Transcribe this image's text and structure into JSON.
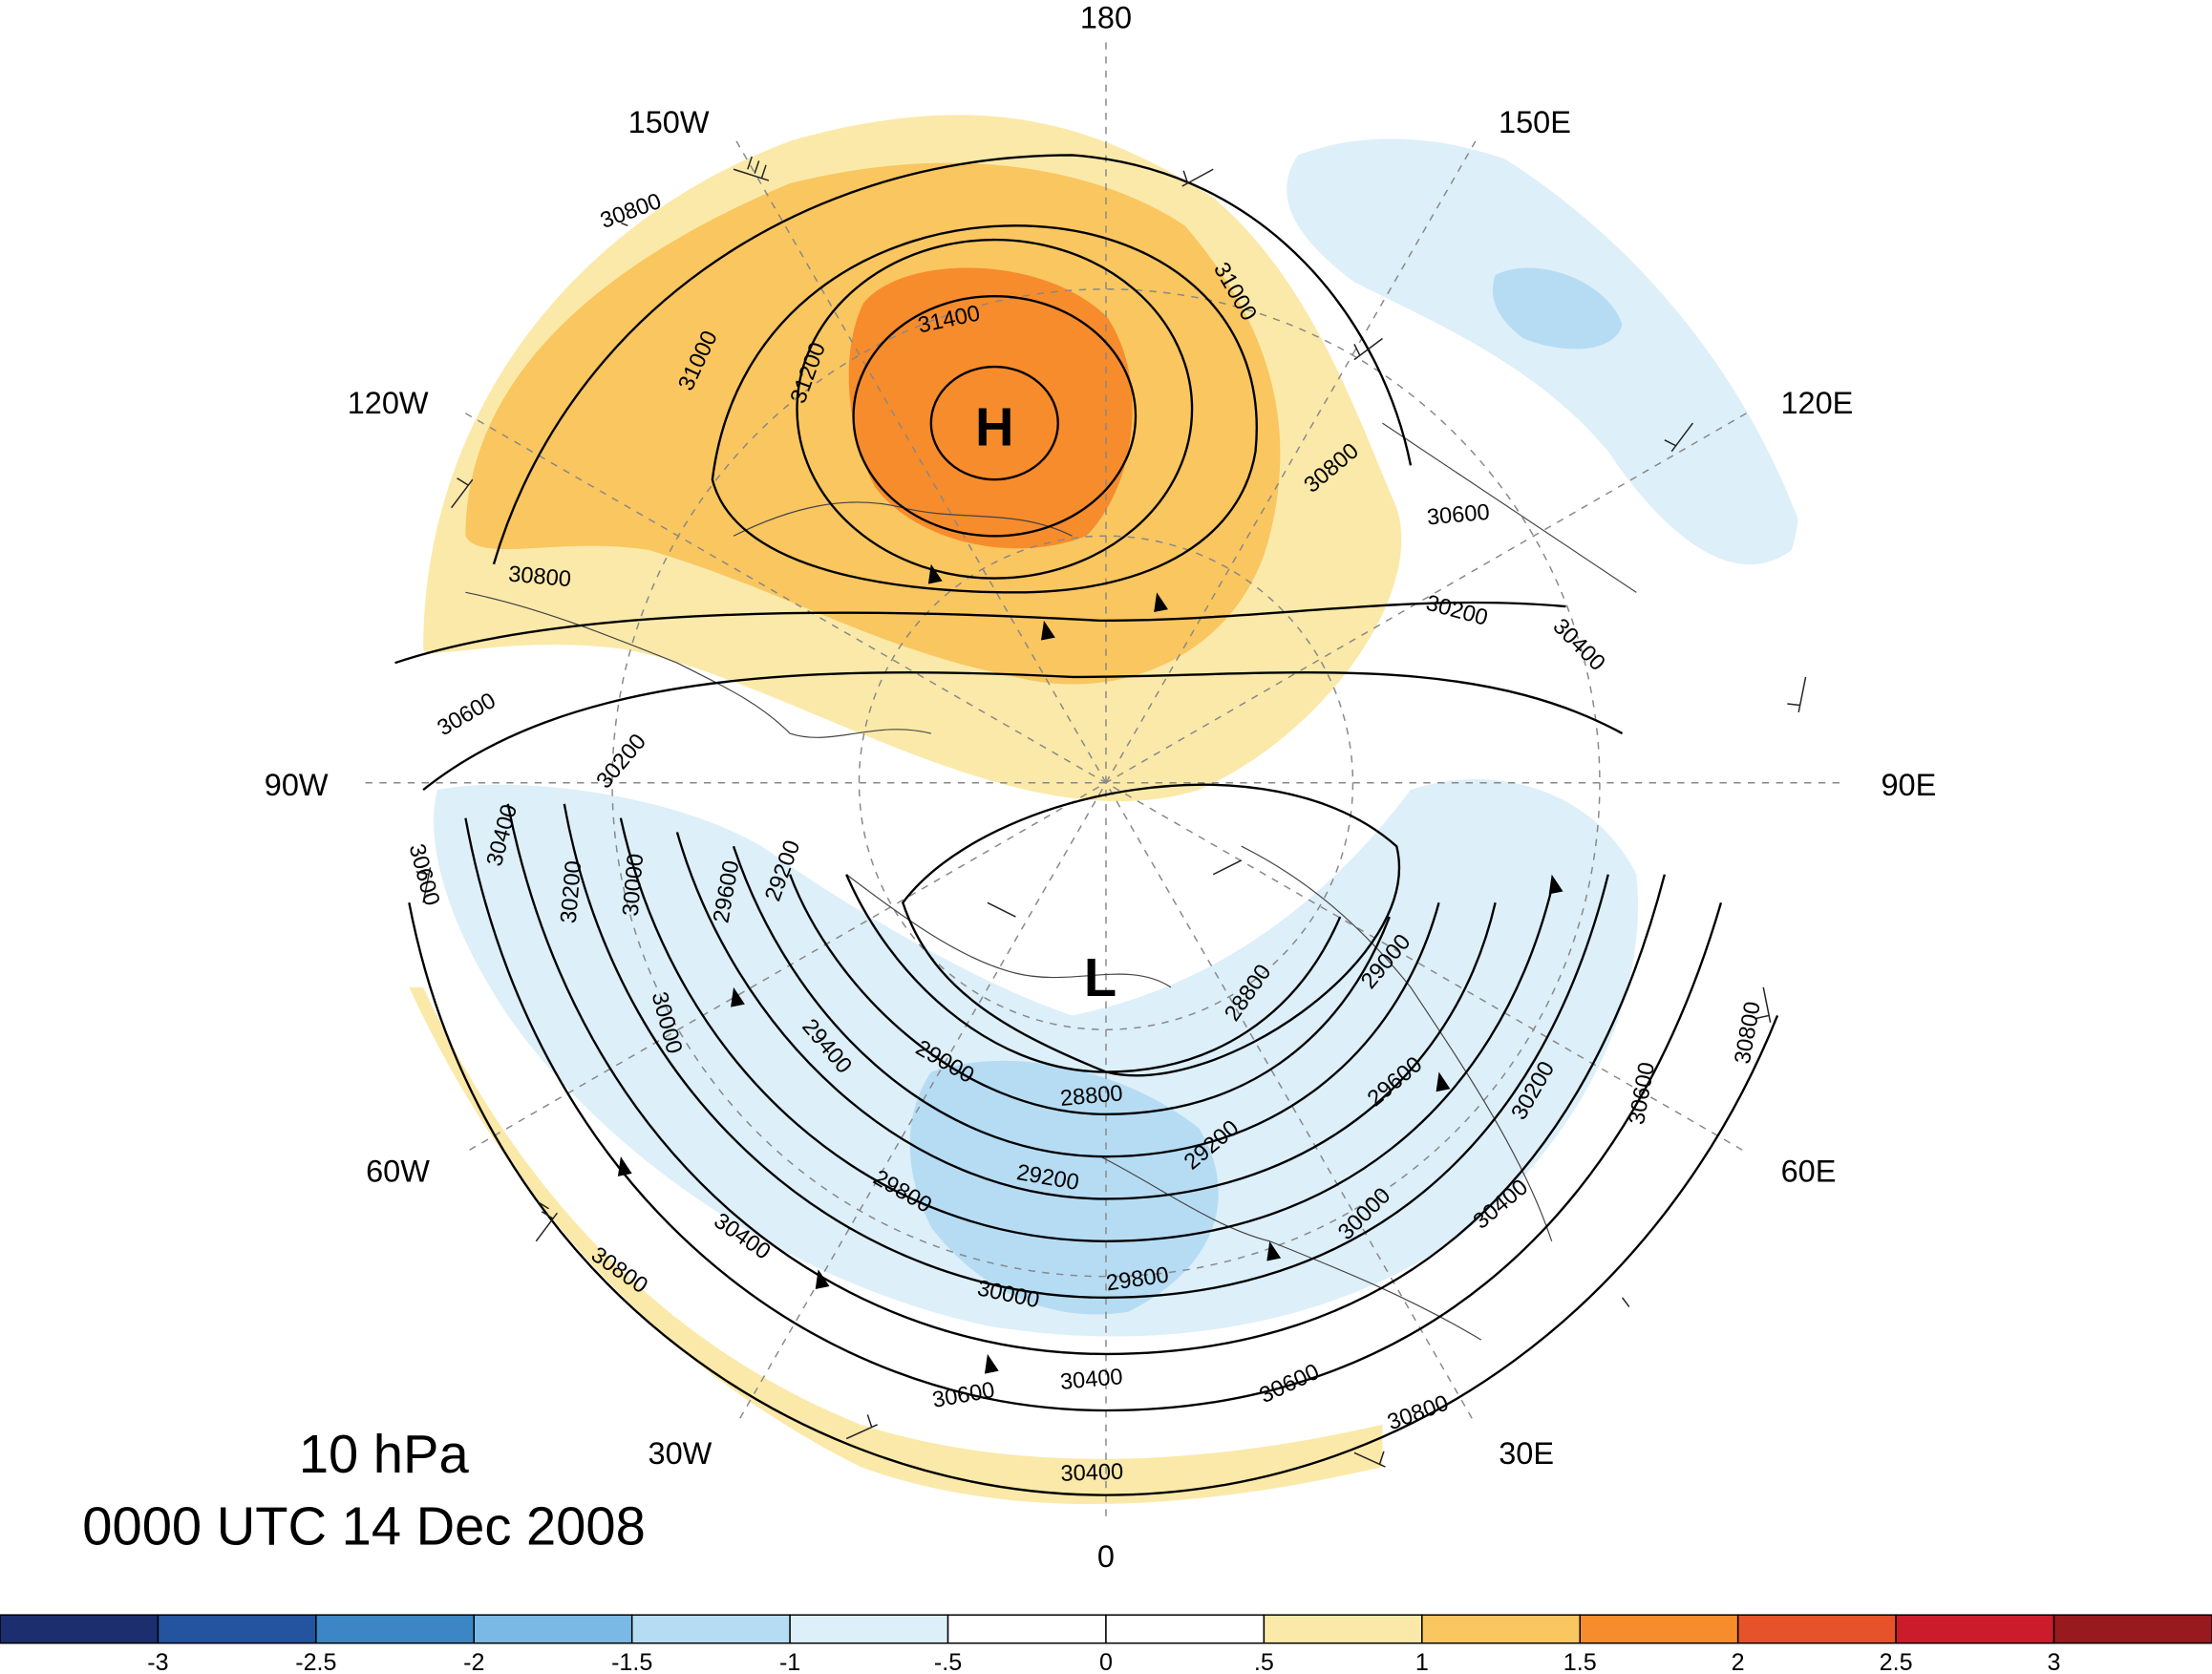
{
  "map": {
    "level": "10 hPa",
    "time": "0000 UTC 14 Dec 2008",
    "longitude_labels": {
      "lon_180": "180",
      "lon_150E": "150E",
      "lon_120E": "120E",
      "lon_90E": "90E",
      "lon_60E": "60E",
      "lon_30E": "30E",
      "lon_0": "0",
      "lon_30W": "30W",
      "lon_60W": "60W",
      "lon_90W": "90W",
      "lon_120W": "120W",
      "lon_150W": "150W"
    },
    "high_center": "H",
    "low_center": "L",
    "contour_labels": [
      "30800",
      "31000",
      "31200",
      "31400",
      "31000",
      "30800",
      "30600",
      "30200",
      "30400",
      "30800",
      "30600",
      "30200",
      "30400",
      "30600",
      "30000",
      "30200",
      "29600",
      "29200",
      "30000",
      "29400",
      "29000",
      "28800",
      "28800",
      "29000",
      "29200",
      "29200",
      "29600",
      "29800",
      "30000",
      "29800",
      "30200",
      "30400",
      "30400",
      "30000",
      "30600",
      "30800",
      "30400",
      "30600",
      "30800",
      "30600",
      "30800",
      "30400"
    ],
    "colors": {
      "warm_light": "#fbe9a9",
      "warm_mid": "#f9c660",
      "warm_strong": "#f78c2c",
      "cool_light": "#ddeff9",
      "cool_mid": "#b6dcf4"
    }
  },
  "colorbar": {
    "colors": [
      "#1d2e6e",
      "#2453a0",
      "#3c86c5",
      "#7ab9e5",
      "#b6dcf4",
      "#ddeff9",
      "#ffffff",
      "#ffffff",
      "#fbe9a9",
      "#f9c660",
      "#f78c2c",
      "#e6532a",
      "#cc1c2c",
      "#991a1e"
    ],
    "ticks": [
      "-3",
      "-2.5",
      "-2",
      "-1.5",
      "-1",
      "-.5",
      "0",
      ".5",
      "1",
      "1.5",
      "2",
      "2.5",
      "3"
    ]
  }
}
